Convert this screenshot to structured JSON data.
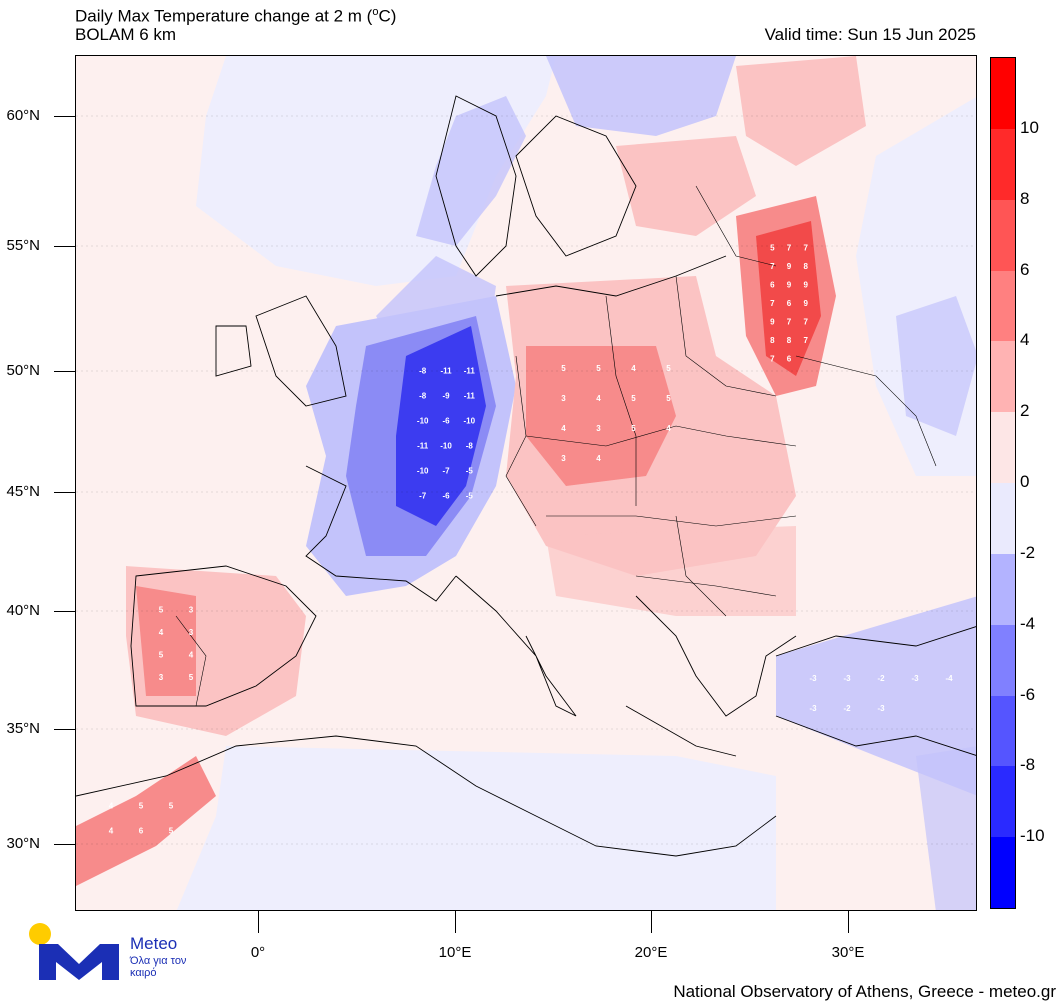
{
  "header": {
    "title_line1": "Daily Max Temperature change at 2 m (",
    "title_unit": "o",
    "title_line1_end": "C)",
    "title_line2": "BOLAM 6 km",
    "valid_time": "Valid time: Sun 15 Jun 2025"
  },
  "axes": {
    "latitude_labels": [
      {
        "text": "60°N",
        "lat": 60
      },
      {
        "text": "55°N",
        "lat": 55
      },
      {
        "text": "50°N",
        "lat": 50
      },
      {
        "text": "45°N",
        "lat": 45
      },
      {
        "text": "40°N",
        "lat": 40
      },
      {
        "text": "35°N",
        "lat": 35
      },
      {
        "text": "30°N",
        "lat": 30
      }
    ],
    "longitude_labels": [
      {
        "text": "0°",
        "lon": 0
      },
      {
        "text": "10°E",
        "lon": 10
      },
      {
        "text": "20°E",
        "lon": 20
      },
      {
        "text": "30°E",
        "lon": 30
      }
    ]
  },
  "colorbar": {
    "labels": [
      "10",
      "8",
      "6",
      "4",
      "2",
      "0",
      "-2",
      "-4",
      "-6",
      "-8",
      "-10"
    ],
    "colors": [
      "#ff0000",
      "#ff2a2a",
      "#ff5555",
      "#ff8080",
      "#ffb3b3",
      "#fde6e6",
      "#eaeafd",
      "#b3b3ff",
      "#8080ff",
      "#5555ff",
      "#2a2aff",
      "#0000ff"
    ]
  },
  "colors": {
    "warm_strong": "#f24a4a",
    "warm_medium": "#f78b8b",
    "warm_light": "#fbc3c3",
    "neutral_warm": "#fdf0ef",
    "neutral_cool": "#eeeefd",
    "cool_light": "#c3c3fb",
    "cool_medium": "#8b8bf5",
    "cool_strong": "#3c3cf0"
  },
  "map_values": [
    {
      "region": "central-europe-warm",
      "values": [
        "5",
        "5",
        "4",
        "5",
        "3",
        "4",
        "5",
        "5",
        "4",
        "3",
        "5",
        "4",
        "3",
        "4"
      ]
    },
    {
      "region": "russia-warm",
      "values": [
        "5",
        "7",
        "7",
        "7",
        "9",
        "8",
        "6",
        "9",
        "9",
        "7",
        "6",
        "9",
        "9",
        "7",
        "7",
        "8",
        "8",
        "7",
        "7",
        "6"
      ]
    },
    {
      "region": "france-cold",
      "values": [
        "-8",
        "-11",
        "-11",
        "-8",
        "-9",
        "-11",
        "-10",
        "-6",
        "-10",
        "-11",
        "-10",
        "-8",
        "-10",
        "-7",
        "-5",
        "-7",
        "-6",
        "-5"
      ]
    },
    {
      "region": "iberia-warm",
      "values": [
        "5",
        "3",
        "4",
        "3",
        "5",
        "4",
        "3",
        "5"
      ]
    },
    {
      "region": "morocco-warm",
      "values": [
        "4",
        "5",
        "5",
        "4",
        "6",
        "5"
      ]
    },
    {
      "region": "turkey-cold",
      "values": [
        "-3",
        "-3",
        "-2",
        "-3",
        "-4",
        "-3",
        "-2",
        "-3"
      ]
    }
  ],
  "branding": {
    "logo_name": "Meteo",
    "logo_tagline": "Όλα για τον καιρό",
    "credit": "National Observatory of Athens, Greece - meteo.gr"
  }
}
